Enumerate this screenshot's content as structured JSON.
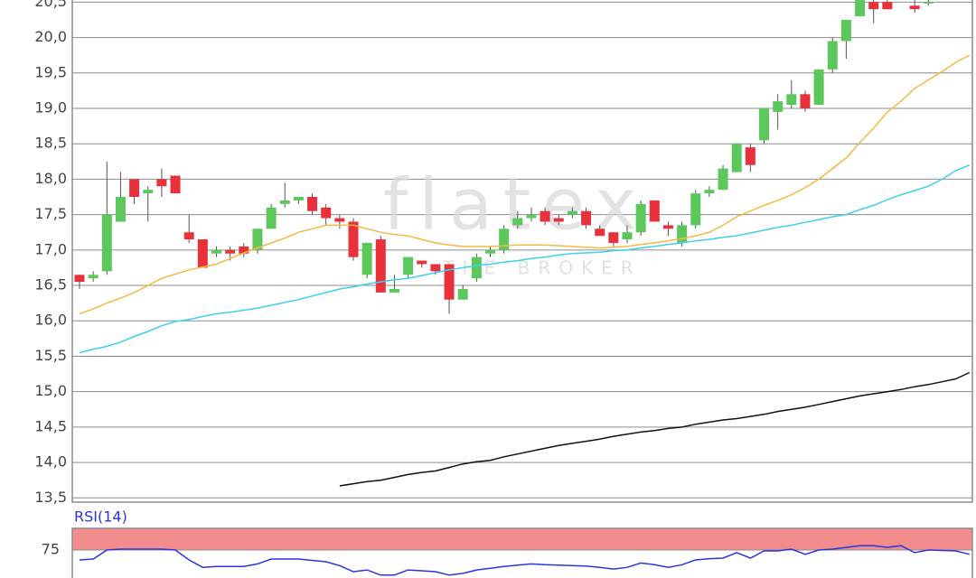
{
  "chart_data": [
    {
      "type": "candlestick",
      "open": [
        16.65,
        16.6,
        16.7,
        17.4,
        18.0,
        17.8,
        18.0,
        18.05,
        17.25,
        17.15,
        16.95,
        17.0,
        17.05,
        17.0,
        17.3,
        17.65,
        17.7,
        17.75,
        17.6,
        17.45,
        17.4,
        16.65,
        17.15,
        16.4,
        16.65,
        16.85,
        16.8,
        16.8,
        16.3,
        16.6,
        16.95,
        17.0,
        17.35,
        17.45,
        17.55,
        17.45,
        17.5,
        17.55,
        17.3,
        17.25,
        17.15,
        17.25,
        17.7,
        17.35,
        17.1,
        17.35,
        17.8,
        17.85,
        18.1,
        18.45,
        18.55,
        18.95,
        19.05,
        19.2,
        19.05,
        19.55,
        19.95,
        20.3,
        20.5,
        20.5,
        null,
        20.45,
        20.5,
        null,
        null,
        null
      ],
      "high": [
        16.65,
        16.7,
        18.25,
        18.1,
        18.0,
        17.9,
        18.15,
        18.05,
        17.5,
        17.15,
        17.05,
        17.05,
        17.1,
        17.3,
        17.65,
        17.95,
        17.75,
        17.8,
        17.65,
        17.5,
        17.45,
        17.1,
        17.2,
        16.65,
        16.9,
        16.85,
        16.8,
        16.8,
        16.5,
        16.95,
        17.05,
        17.35,
        17.55,
        17.6,
        17.6,
        17.5,
        17.6,
        17.6,
        17.35,
        17.25,
        17.35,
        17.7,
        17.7,
        17.4,
        17.4,
        17.85,
        17.9,
        18.2,
        18.5,
        18.5,
        19.0,
        19.2,
        19.4,
        19.25,
        19.55,
        20.0,
        20.25,
        20.65,
        20.55,
        20.55,
        null,
        20.55,
        20.55,
        null,
        null,
        null
      ],
      "low": [
        16.45,
        16.55,
        16.65,
        17.4,
        17.65,
        17.4,
        17.75,
        17.8,
        17.1,
        16.75,
        16.9,
        16.85,
        16.9,
        16.95,
        17.3,
        17.6,
        17.65,
        17.5,
        17.35,
        17.3,
        16.85,
        16.6,
        16.4,
        16.4,
        16.6,
        16.75,
        16.65,
        16.1,
        16.3,
        16.55,
        16.9,
        16.95,
        17.3,
        17.4,
        17.35,
        17.35,
        17.45,
        17.3,
        17.2,
        17.05,
        17.1,
        17.2,
        17.4,
        17.2,
        17.05,
        17.3,
        17.75,
        17.85,
        18.1,
        18.1,
        18.5,
        18.7,
        19.0,
        18.95,
        19.05,
        19.5,
        19.7,
        20.3,
        20.2,
        20.4,
        null,
        20.35,
        20.45,
        null,
        null,
        null
      ],
      "close": [
        16.55,
        16.65,
        17.5,
        17.75,
        17.75,
        17.85,
        17.9,
        17.8,
        17.15,
        16.75,
        17.0,
        16.95,
        16.95,
        17.3,
        17.6,
        17.7,
        17.75,
        17.55,
        17.45,
        17.4,
        16.9,
        17.1,
        16.4,
        16.45,
        16.9,
        16.8,
        16.7,
        16.3,
        16.45,
        16.9,
        17.0,
        17.3,
        17.45,
        17.5,
        17.4,
        17.4,
        17.55,
        17.35,
        17.2,
        17.1,
        17.25,
        17.65,
        17.4,
        17.3,
        17.35,
        17.8,
        17.85,
        18.15,
        18.5,
        18.2,
        19.0,
        19.1,
        19.2,
        19.0,
        19.55,
        19.95,
        20.25,
        20.65,
        20.4,
        20.4,
        null,
        20.4,
        20.5,
        null,
        null,
        null
      ],
      "up_color": "#5cc85c",
      "down_color": "#e8313a",
      "wick_color": "#555555",
      "series": [
        {
          "color": "#f5b942",
          "values": [
            16.1,
            16.17,
            16.25,
            16.32,
            16.4,
            16.5,
            16.6,
            16.66,
            16.72,
            16.76,
            16.8,
            16.88,
            16.96,
            17.03,
            17.1,
            17.17,
            17.25,
            17.3,
            17.35,
            17.35,
            17.35,
            17.3,
            17.25,
            17.22,
            17.2,
            17.15,
            17.1,
            17.07,
            17.05,
            17.05,
            17.05,
            17.06,
            17.07,
            17.07,
            17.07,
            17.06,
            17.05,
            17.04,
            17.03,
            17.04,
            17.05,
            17.08,
            17.1,
            17.13,
            17.16,
            17.2,
            17.25,
            17.35,
            17.47,
            17.55,
            17.63,
            17.7,
            17.78,
            17.88,
            18.0,
            18.15,
            18.3,
            18.52,
            18.72,
            18.95,
            19.1,
            19.28,
            19.4,
            19.52,
            19.65,
            19.75
          ]
        },
        {
          "color": "#3fd0f0",
          "values": [
            15.55,
            15.6,
            15.64,
            15.7,
            15.78,
            15.85,
            15.93,
            15.99,
            16.02,
            16.06,
            16.1,
            16.12,
            16.15,
            16.18,
            16.22,
            16.26,
            16.3,
            16.35,
            16.4,
            16.45,
            16.48,
            16.52,
            16.55,
            16.58,
            16.6,
            16.64,
            16.68,
            16.72,
            16.75,
            16.78,
            16.8,
            16.83,
            16.85,
            16.88,
            16.9,
            16.93,
            16.95,
            16.96,
            16.97,
            16.99,
            17.0,
            17.03,
            17.05,
            17.08,
            17.1,
            17.13,
            17.15,
            17.18,
            17.2,
            17.24,
            17.28,
            17.32,
            17.35,
            17.39,
            17.43,
            17.47,
            17.5,
            17.57,
            17.63,
            17.71,
            17.78,
            17.84,
            17.9,
            18.0,
            18.12,
            18.2
          ]
        },
        {
          "color": "#111111",
          "values": [
            null,
            null,
            null,
            null,
            null,
            null,
            null,
            null,
            null,
            null,
            null,
            null,
            null,
            null,
            null,
            null,
            null,
            null,
            null,
            13.67,
            13.7,
            13.73,
            13.75,
            13.79,
            13.83,
            13.86,
            13.88,
            13.93,
            13.98,
            14.01,
            14.03,
            14.08,
            14.12,
            14.16,
            14.2,
            14.24,
            14.27,
            14.3,
            14.33,
            14.37,
            14.4,
            14.43,
            14.45,
            14.48,
            14.5,
            14.54,
            14.57,
            14.6,
            14.62,
            14.65,
            14.68,
            14.72,
            14.75,
            14.78,
            14.82,
            14.86,
            14.9,
            14.94,
            14.97,
            15.0,
            15.03,
            15.07,
            15.1,
            15.14,
            15.18,
            15.27
          ]
        }
      ],
      "ylim": [
        13.44,
        20.53
      ],
      "yticks": [
        {
          "value": 13.5,
          "label": "13,5"
        },
        {
          "value": 14,
          "label": "14,0"
        },
        {
          "value": 14.5,
          "label": "14,5"
        },
        {
          "value": 15,
          "label": "15,0"
        },
        {
          "value": 15.5,
          "label": "15,5"
        },
        {
          "value": 16,
          "label": "16,0"
        },
        {
          "value": 16.5,
          "label": "16,5"
        },
        {
          "value": 17,
          "label": "17,0"
        },
        {
          "value": 17.5,
          "label": "17,5"
        },
        {
          "value": 18,
          "label": "18,0"
        },
        {
          "value": 18.5,
          "label": "18,5"
        },
        {
          "value": 19,
          "label": "19,0"
        },
        {
          "value": 19.5,
          "label": "19,5"
        },
        {
          "value": 20,
          "label": "20,0"
        },
        {
          "value": 20.5,
          "label": "20,5"
        }
      ],
      "grid": true,
      "watermark": {
        "title": "flatex",
        "subtitle": "THE BROKER"
      }
    },
    {
      "type": "line",
      "title": "RSI(14)",
      "series": [
        {
          "color": "#2a35e0",
          "values": [
            63.5,
            64.6,
            75,
            76,
            76,
            76,
            76,
            75,
            63.5,
            55,
            56,
            56,
            56,
            59,
            64.6,
            64.6,
            64.6,
            63,
            61.5,
            57,
            50,
            52,
            46,
            46,
            52,
            51,
            50,
            46,
            48,
            52,
            54,
            56,
            57.5,
            59,
            58,
            57.5,
            57,
            56.5,
            55,
            53,
            55,
            60,
            58,
            55,
            58,
            63.5,
            65,
            65.6,
            72,
            65.6,
            74,
            74,
            76,
            70,
            75,
            76,
            78,
            80,
            80,
            78,
            80,
            72,
            75,
            74.5,
            74,
            70
          ]
        }
      ],
      "ylim": [
        44,
        100
      ],
      "yticks": [
        75
      ],
      "band": [
        75,
        100
      ],
      "band_color": "#f28b8b",
      "grid": true
    }
  ]
}
